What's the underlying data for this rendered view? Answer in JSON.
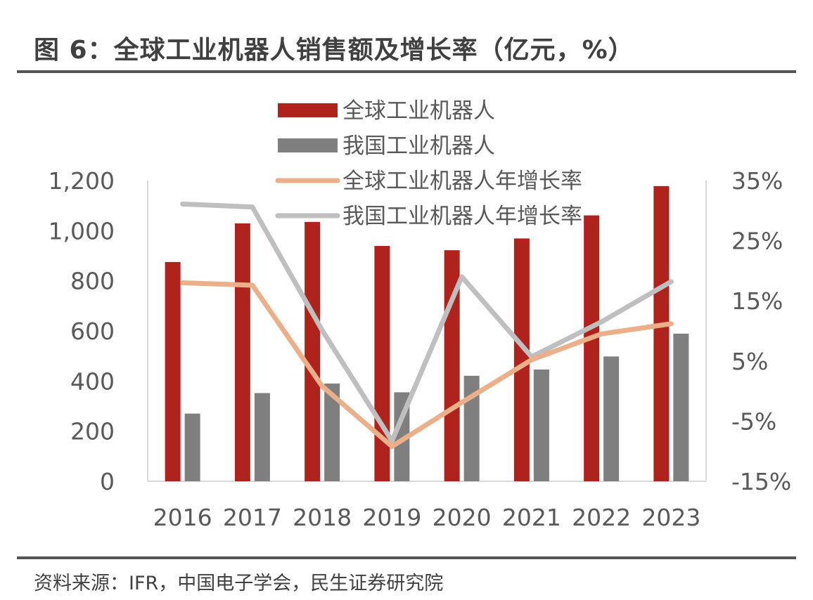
{
  "title": "图 6：全球工业机器人销售额及增长率（亿元，%）",
  "source": "资料来源：IFR，中国电子学会，民生证券研究院",
  "chart_data": {
    "type": "bar",
    "title": "全球工业机器人销售额及增长率（亿元，%）",
    "categories": [
      "2016",
      "2017",
      "2018",
      "2019",
      "2020",
      "2021",
      "2022",
      "2023"
    ],
    "series": [
      {
        "name": "全球工业机器人",
        "type": "bar",
        "axis": "left",
        "color": "#AF231C",
        "values": [
          875,
          1029,
          1035,
          939,
          922,
          969,
          1061,
          1178
        ]
      },
      {
        "name": "我国工业机器人",
        "type": "bar",
        "axis": "left",
        "color": "#7F7F7F",
        "values": [
          270,
          352,
          390,
          355,
          421,
          446,
          498,
          589
        ]
      },
      {
        "name": "全球工业机器人年增长率",
        "type": "line",
        "axis": "right",
        "color": "#EBB08A",
        "values": [
          18.0,
          17.6,
          0.8,
          -9.2,
          -1.9,
          5.2,
          9.5,
          11.2
        ]
      },
      {
        "name": "我国工业机器人年增长率",
        "type": "line",
        "axis": "right",
        "color": "#BFBFBF",
        "values": [
          31.1,
          30.6,
          10.1,
          -8.3,
          19.0,
          5.7,
          11.5,
          18.2
        ]
      }
    ],
    "left_axis": {
      "min": 0,
      "max": 1200,
      "ticks": [
        "0",
        "200",
        "400",
        "600",
        "800",
        "1,000",
        "1,200"
      ],
      "tick_values": [
        0,
        200,
        400,
        600,
        800,
        1000,
        1200
      ]
    },
    "right_axis": {
      "min": -15,
      "max": 35,
      "ticks": [
        "-15%",
        "-5%",
        "5%",
        "15%",
        "25%",
        "35%"
      ],
      "tick_values": [
        -15,
        -5,
        5,
        15,
        25,
        35
      ]
    },
    "xlabel": "",
    "ylabel": "亿元",
    "y2label": "%",
    "grid": false,
    "legend": "top-center"
  }
}
